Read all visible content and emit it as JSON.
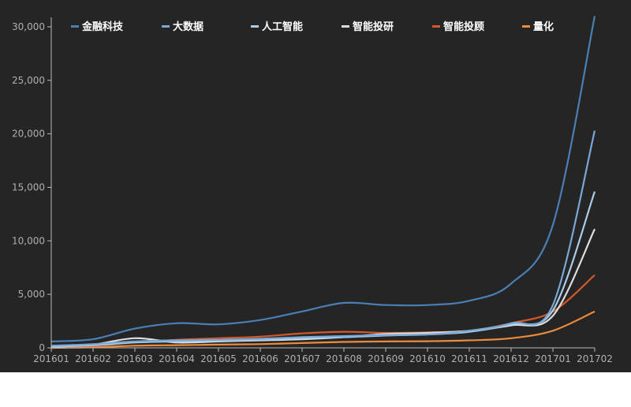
{
  "chart_data": {
    "type": "line",
    "title": "",
    "xlabel": "",
    "ylabel": "",
    "categories": [
      "201601",
      "201602",
      "201603",
      "201604",
      "201605",
      "201606",
      "201607",
      "201608",
      "201609",
      "201610",
      "201611",
      "201612",
      "201701",
      "201702"
    ],
    "ylim": [
      0,
      30000
    ],
    "yticks": [
      0,
      5000,
      10000,
      15000,
      20000,
      25000,
      30000
    ],
    "ytick_labels": [
      "0",
      "5,000",
      "10,000",
      "15,000",
      "20,000",
      "25,000",
      "30,000"
    ],
    "grid": false,
    "legend_position": "top",
    "series": [
      {
        "name": "金融科技",
        "color": "#4a7fb5",
        "values": [
          600,
          800,
          1800,
          2300,
          2200,
          2600,
          3400,
          4200,
          4000,
          4000,
          4400,
          6000,
          11500,
          31000
        ]
      },
      {
        "name": "大数据",
        "color": "#7aa8d6",
        "values": [
          200,
          350,
          600,
          700,
          750,
          850,
          1000,
          1100,
          1200,
          1250,
          1600,
          2300,
          4000,
          20300
        ]
      },
      {
        "name": "人工智能",
        "color": "#a9cde8",
        "values": [
          100,
          250,
          500,
          600,
          650,
          750,
          900,
          1000,
          1150,
          1250,
          1500,
          2200,
          3500,
          14600
        ]
      },
      {
        "name": "智能投研",
        "color": "#dddddd",
        "values": [
          100,
          300,
          900,
          500,
          600,
          700,
          800,
          1000,
          1300,
          1400,
          1600,
          2100,
          3000,
          11100
        ]
      },
      {
        "name": "智能投顾",
        "color": "#d2592a",
        "values": [
          50,
          200,
          500,
          750,
          900,
          1050,
          1350,
          1500,
          1400,
          1450,
          1600,
          2300,
          3400,
          6800
        ]
      },
      {
        "name": "量化",
        "color": "#ef8a3b",
        "values": [
          0,
          50,
          200,
          250,
          300,
          350,
          450,
          550,
          600,
          620,
          700,
          900,
          1600,
          3400
        ]
      }
    ]
  }
}
